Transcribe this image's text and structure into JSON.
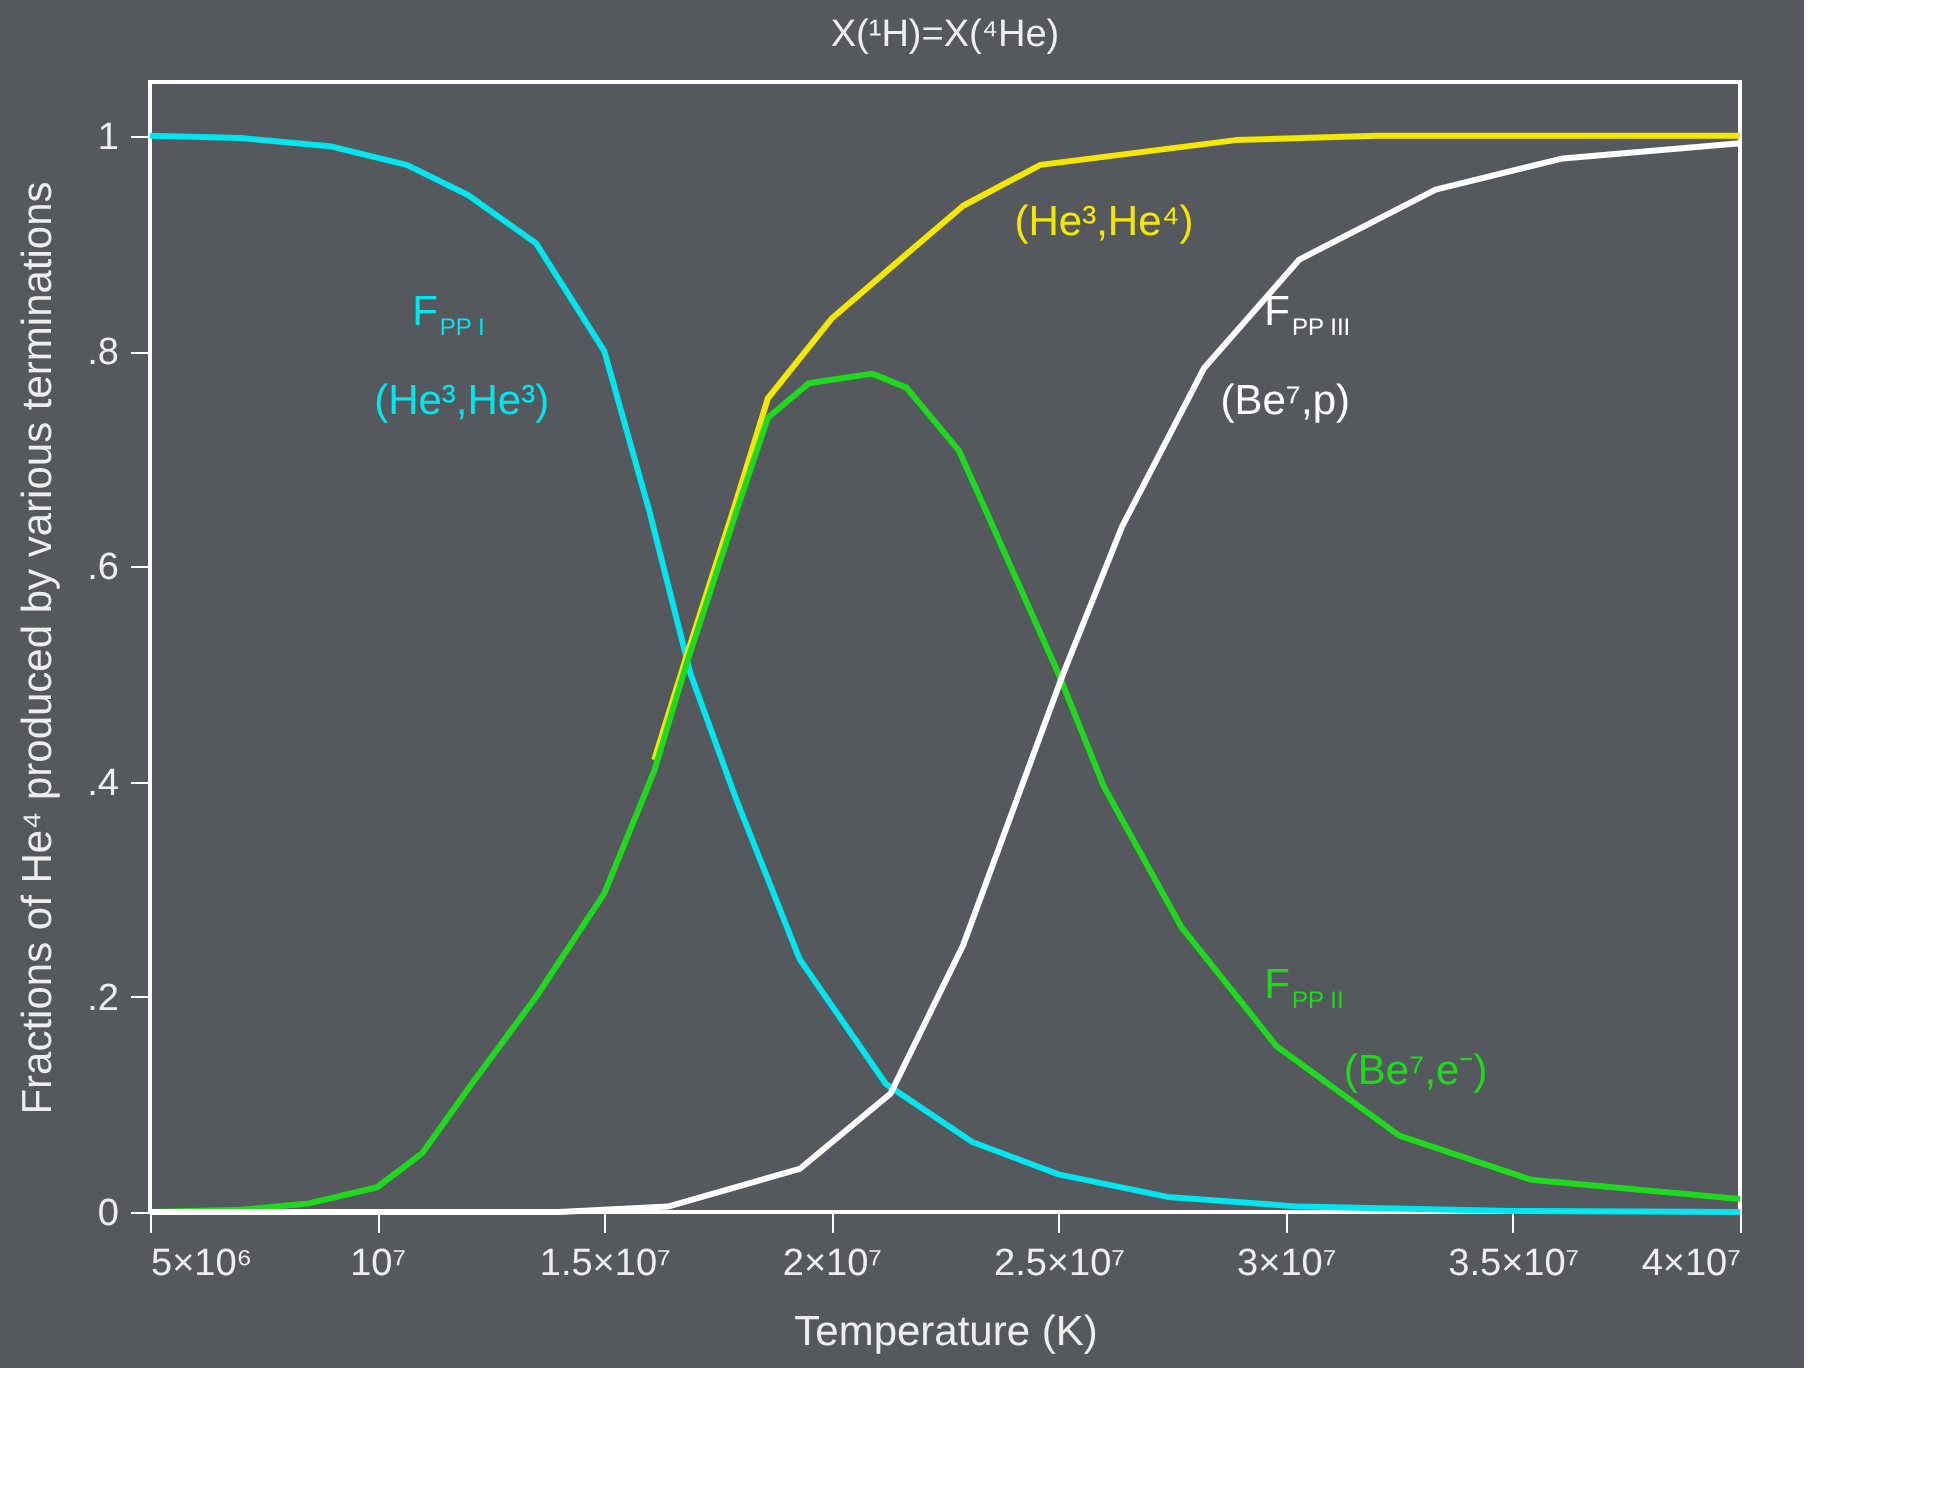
{
  "chart_data": {
    "type": "line",
    "title": "X(¹H)=X(⁴He)",
    "xlabel": "Temperature (K)",
    "ylabel": "Fractions of He⁴ produced by various terminations",
    "xlim": [
      5000000,
      40000000
    ],
    "ylim": [
      0,
      1.05
    ],
    "xticks": [
      {
        "value": 5000000,
        "label": "5×10⁶"
      },
      {
        "value": 10000000,
        "label": "10⁷"
      },
      {
        "value": 15000000,
        "label": "1.5×10⁷"
      },
      {
        "value": 20000000,
        "label": "2×10⁷"
      },
      {
        "value": 25000000,
        "label": "2.5×10⁷"
      },
      {
        "value": 30000000,
        "label": "3×10⁷"
      },
      {
        "value": 35000000,
        "label": "3.5×10⁷"
      },
      {
        "value": 40000000,
        "label": "4×10⁷"
      }
    ],
    "yticks": [
      0,
      {
        "value": 0.2,
        "label": ".2"
      },
      {
        "value": 0.4,
        "label": ".4"
      },
      {
        "value": 0.6,
        "label": ".6"
      },
      {
        "value": 0.8,
        "label": ".8"
      },
      1
    ],
    "grid": false,
    "line_style": "solid",
    "marker": "none",
    "series": [
      {
        "name": "F$_{PP I}$\n(He³,He³)",
        "color": "#00e5ee",
        "x": [
          5000000,
          7000000,
          9000000,
          10650000,
          12000000,
          13500000,
          15000000,
          16000000,
          16900000,
          17900000,
          19300000,
          21200000,
          23100000,
          25000000,
          27400000,
          30300000,
          35000000,
          40000000
        ],
        "values": [
          1.0,
          0.998,
          0.99,
          0.973,
          0.945,
          0.9,
          0.8,
          0.65,
          0.5,
          0.384,
          0.235,
          0.119,
          0.065,
          0.035,
          0.014,
          0.005,
          0.001,
          0.0
        ]
      },
      {
        "name": "(He³,He⁴)",
        "color": "#f5e800",
        "x": [
          16100000,
          16800000,
          17900000,
          18600000,
          20000000,
          21650000,
          22900000,
          24600000,
          28900000,
          32000000,
          40000000
        ],
        "values": [
          0.42,
          0.515,
          0.66,
          0.756,
          0.83,
          0.89,
          0.935,
          0.973,
          0.996,
          1.0,
          1.0
        ]
      },
      {
        "name": "F$_{PP II}$\n(Be⁷,e⁻)",
        "color": "#1ed91e",
        "x": [
          5000000,
          7000000,
          8500000,
          10000000,
          11000000,
          12100000,
          13500000,
          15000000,
          16100000,
          16800000,
          17900000,
          18600000,
          19500000,
          20900000,
          21650000,
          22800000,
          23100000,
          25000000,
          26000000,
          27700000,
          29800000,
          32500000,
          35400000,
          40000000
        ],
        "values": [
          0.0,
          0.002,
          0.008,
          0.023,
          0.055,
          0.12,
          0.2,
          0.296,
          0.41,
          0.508,
          0.65,
          0.738,
          0.77,
          0.779,
          0.766,
          0.708,
          0.68,
          0.5,
          0.395,
          0.265,
          0.154,
          0.071,
          0.03,
          0.012
        ]
      },
      {
        "name": "F$_{PP III}$\n(Be⁷,p)",
        "color": "#ffffff",
        "x": [
          5000000,
          14000000,
          16400000,
          19300000,
          21300000,
          22900000,
          25100000,
          26400000,
          28200000,
          30300000,
          33300000,
          36100000,
          40000000
        ],
        "values": [
          0.0,
          0.0,
          0.005,
          0.04,
          0.11,
          0.248,
          0.5,
          0.637,
          0.784,
          0.885,
          0.95,
          0.979,
          0.993
        ]
      }
    ]
  }
}
